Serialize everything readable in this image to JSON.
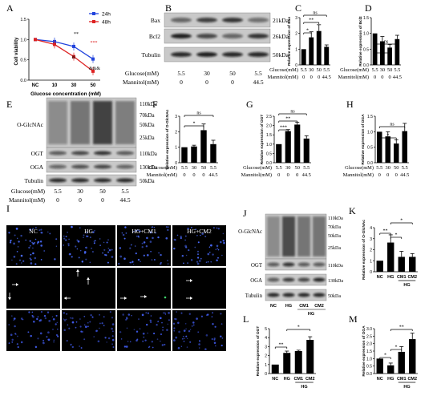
{
  "panels": {
    "A": "A",
    "B": "B",
    "C": "C",
    "D": "D",
    "E": "E",
    "F": "F",
    "G": "G",
    "H": "H",
    "I": "I",
    "J": "J",
    "K": "K",
    "L": "L",
    "M": "M"
  },
  "blots": {
    "B": {
      "rows": [
        "Bax",
        "Bcl2",
        "Tubulin"
      ],
      "sizes": [
        "21kDa",
        "26kDa",
        "50kDa"
      ],
      "glucose_label": "Glucose(mM)",
      "mannitol_label": "Mannitol(mM)",
      "glucose": [
        "5.5",
        "30",
        "50",
        "5.5"
      ],
      "mannitol": [
        "0",
        "0",
        "0",
        "44.5"
      ]
    },
    "E": {
      "rows": [
        "O-GlcNAc",
        "OGT",
        "OGA",
        "Tubulin"
      ],
      "ogl_sizes": [
        "110kDa",
        "70kDa",
        "50kDa",
        "25kDa"
      ],
      "sizes": [
        "110kDa",
        "130kDa",
        "50kDa"
      ],
      "glucose_label": "Glucose(mM)",
      "mannitol_label": "Mannitol(mM)",
      "glucose": [
        "5.5",
        "30",
        "50",
        "5.5"
      ],
      "mannitol": [
        "0",
        "0",
        "0",
        "44.5"
      ]
    },
    "J": {
      "rows": [
        "O-GlcNAc",
        "OGT",
        "OGA",
        "Tubulin"
      ],
      "ogl_sizes": [
        "110kDa",
        "70kDa",
        "50kDa",
        "25kDa"
      ],
      "sizes": [
        "110kDa",
        "130kDa",
        "50kDa"
      ],
      "lanes": [
        "NC",
        "HG",
        "CM1",
        "CM2"
      ],
      "group": "HG"
    }
  },
  "micro": {
    "cols": [
      "NC",
      "HG",
      "HG+CM1",
      "HG+CM2"
    ]
  },
  "chart_data": [
    {
      "id": "A",
      "type": "line",
      "ylabel": "Cell viability",
      "xlabel": "Glucose concentration (mM)",
      "categories": [
        "NC",
        "10",
        "30",
        "50"
      ],
      "yticks": [
        "0.0",
        "0.5",
        "1.0",
        "1.5"
      ],
      "ylim": [
        0,
        1.5
      ],
      "series": [
        {
          "name": "24h",
          "color": "#2244dd",
          "values": [
            1.0,
            0.95,
            0.83,
            0.52
          ]
        },
        {
          "name": "48h",
          "color": "#dd2222",
          "values": [
            1.0,
            0.88,
            0.58,
            0.22
          ]
        }
      ],
      "annotations": [
        "**",
        "***",
        "&",
        "&&&"
      ]
    },
    {
      "id": "C",
      "type": "bar",
      "ylabel": "Relative expression of Bax",
      "yticks": [
        "0",
        "1",
        "2",
        "3"
      ],
      "ylim": [
        0,
        3
      ],
      "values": [
        1.0,
        1.75,
        2.15,
        1.15
      ],
      "errors": [
        0.0,
        0.35,
        0.4,
        0.12
      ],
      "sig": [
        "*",
        "**",
        "ns"
      ],
      "glucose_label": "Glucose(mM)",
      "mannitol_label": "Mannitol(mM)",
      "glucose": [
        "5.5",
        "30",
        "50",
        "5.5"
      ],
      "mannitol": [
        "0",
        "0",
        "0",
        "44.5"
      ]
    },
    {
      "id": "D",
      "type": "bar",
      "ylabel": "Relative expression of Bcl2",
      "yticks": [
        "0.0",
        "0.5",
        "1.0",
        "1.5"
      ],
      "ylim": [
        0,
        1.5
      ],
      "values": [
        1.0,
        0.75,
        0.55,
        0.82
      ],
      "errors": [
        0.0,
        0.15,
        0.1,
        0.12
      ],
      "sig": [
        "*",
        "ns"
      ],
      "glucose_label": "Glucose(mM)",
      "mannitol_label": "Mannitol(mM)",
      "glucose": [
        "5.5",
        "30",
        "50",
        "5.5"
      ],
      "mannitol": [
        "0",
        "0",
        "0",
        "44.5"
      ]
    },
    {
      "id": "F",
      "type": "bar",
      "ylabel": "Relative expression of O-GlcNAc",
      "yticks": [
        "0",
        "1",
        "2",
        "3"
      ],
      "ylim": [
        0,
        3
      ],
      "values": [
        1.0,
        1.05,
        2.1,
        1.2
      ],
      "errors": [
        0.0,
        0.08,
        0.4,
        0.25
      ],
      "sig": [
        "*",
        "ns"
      ],
      "glucose_label": "Glucose(mM)",
      "mannitol_label": "Mannitol(mM)",
      "glucose": [
        "5.5",
        "30",
        "50",
        "5.5"
      ],
      "mannitol": [
        "0",
        "0",
        "0",
        "44.5"
      ]
    },
    {
      "id": "G",
      "type": "bar",
      "ylabel": "Relative expression of OGT",
      "yticks": [
        "0.0",
        "0.5",
        "1.0",
        "1.5",
        "2.0",
        "2.5"
      ],
      "ylim": [
        0,
        2.5
      ],
      "values": [
        1.0,
        1.7,
        2.05,
        1.3
      ],
      "errors": [
        0.0,
        0.08,
        0.12,
        0.15
      ],
      "sig": [
        "***",
        "**",
        "ns"
      ],
      "glucose_label": "Glucose(mM)",
      "mannitol_label": "Mannitol(mM)",
      "glucose": [
        "5.5",
        "30",
        "50",
        "5.5"
      ],
      "mannitol": [
        "0",
        "0",
        "0",
        "44.5"
      ]
    },
    {
      "id": "H",
      "type": "bar",
      "ylabel": "Relative expression of OGA",
      "yticks": [
        "0.0",
        "0.5",
        "1.0",
        "1.5"
      ],
      "ylim": [
        0,
        1.5
      ],
      "values": [
        1.0,
        0.85,
        0.62,
        1.02
      ],
      "errors": [
        0.0,
        0.15,
        0.12,
        0.25
      ],
      "sig": [
        "*",
        "ns"
      ],
      "glucose_label": "Glucose(mM)",
      "mannitol_label": "Mannitol(mM)",
      "glucose": [
        "5.5",
        "30",
        "50",
        "5.5"
      ],
      "mannitol": [
        "0",
        "0",
        "0",
        "44.5"
      ]
    },
    {
      "id": "K",
      "type": "bar",
      "ylabel": "Relative expression of O-GlcNAc",
      "yticks": [
        "0",
        "1",
        "2",
        "3",
        "4"
      ],
      "ylim": [
        0,
        4
      ],
      "categories": [
        "NC",
        "HG",
        "CM1",
        "CM2"
      ],
      "group": "HG",
      "values": [
        1.0,
        2.65,
        1.35,
        1.35
      ],
      "errors": [
        0.0,
        0.7,
        0.5,
        0.3
      ],
      "sig": [
        "**",
        "*",
        "*"
      ]
    },
    {
      "id": "L",
      "type": "bar",
      "ylabel": "Relative expression of OGT",
      "yticks": [
        "0",
        "1",
        "2",
        "3",
        "4",
        "5"
      ],
      "ylim": [
        0,
        5
      ],
      "categories": [
        "NC",
        "HG",
        "CM1",
        "CM2"
      ],
      "group": "HG",
      "values": [
        1.0,
        2.3,
        2.5,
        3.75
      ],
      "errors": [
        0.0,
        0.2,
        0.1,
        0.35
      ],
      "sig": [
        "**",
        "*"
      ]
    },
    {
      "id": "M",
      "type": "bar",
      "ylabel": "Relative expression of OGA",
      "yticks": [
        "0.0",
        "0.5",
        "1.0",
        "1.5",
        "2.0",
        "2.5",
        "3.0"
      ],
      "ylim": [
        0,
        3.0
      ],
      "categories": [
        "NC",
        "HG",
        "CM1",
        "CM2"
      ],
      "group": "HG",
      "values": [
        1.0,
        0.55,
        1.45,
        2.3
      ],
      "errors": [
        0.0,
        0.15,
        0.35,
        0.4
      ],
      "sig": [
        "*",
        "*",
        "**"
      ]
    }
  ]
}
